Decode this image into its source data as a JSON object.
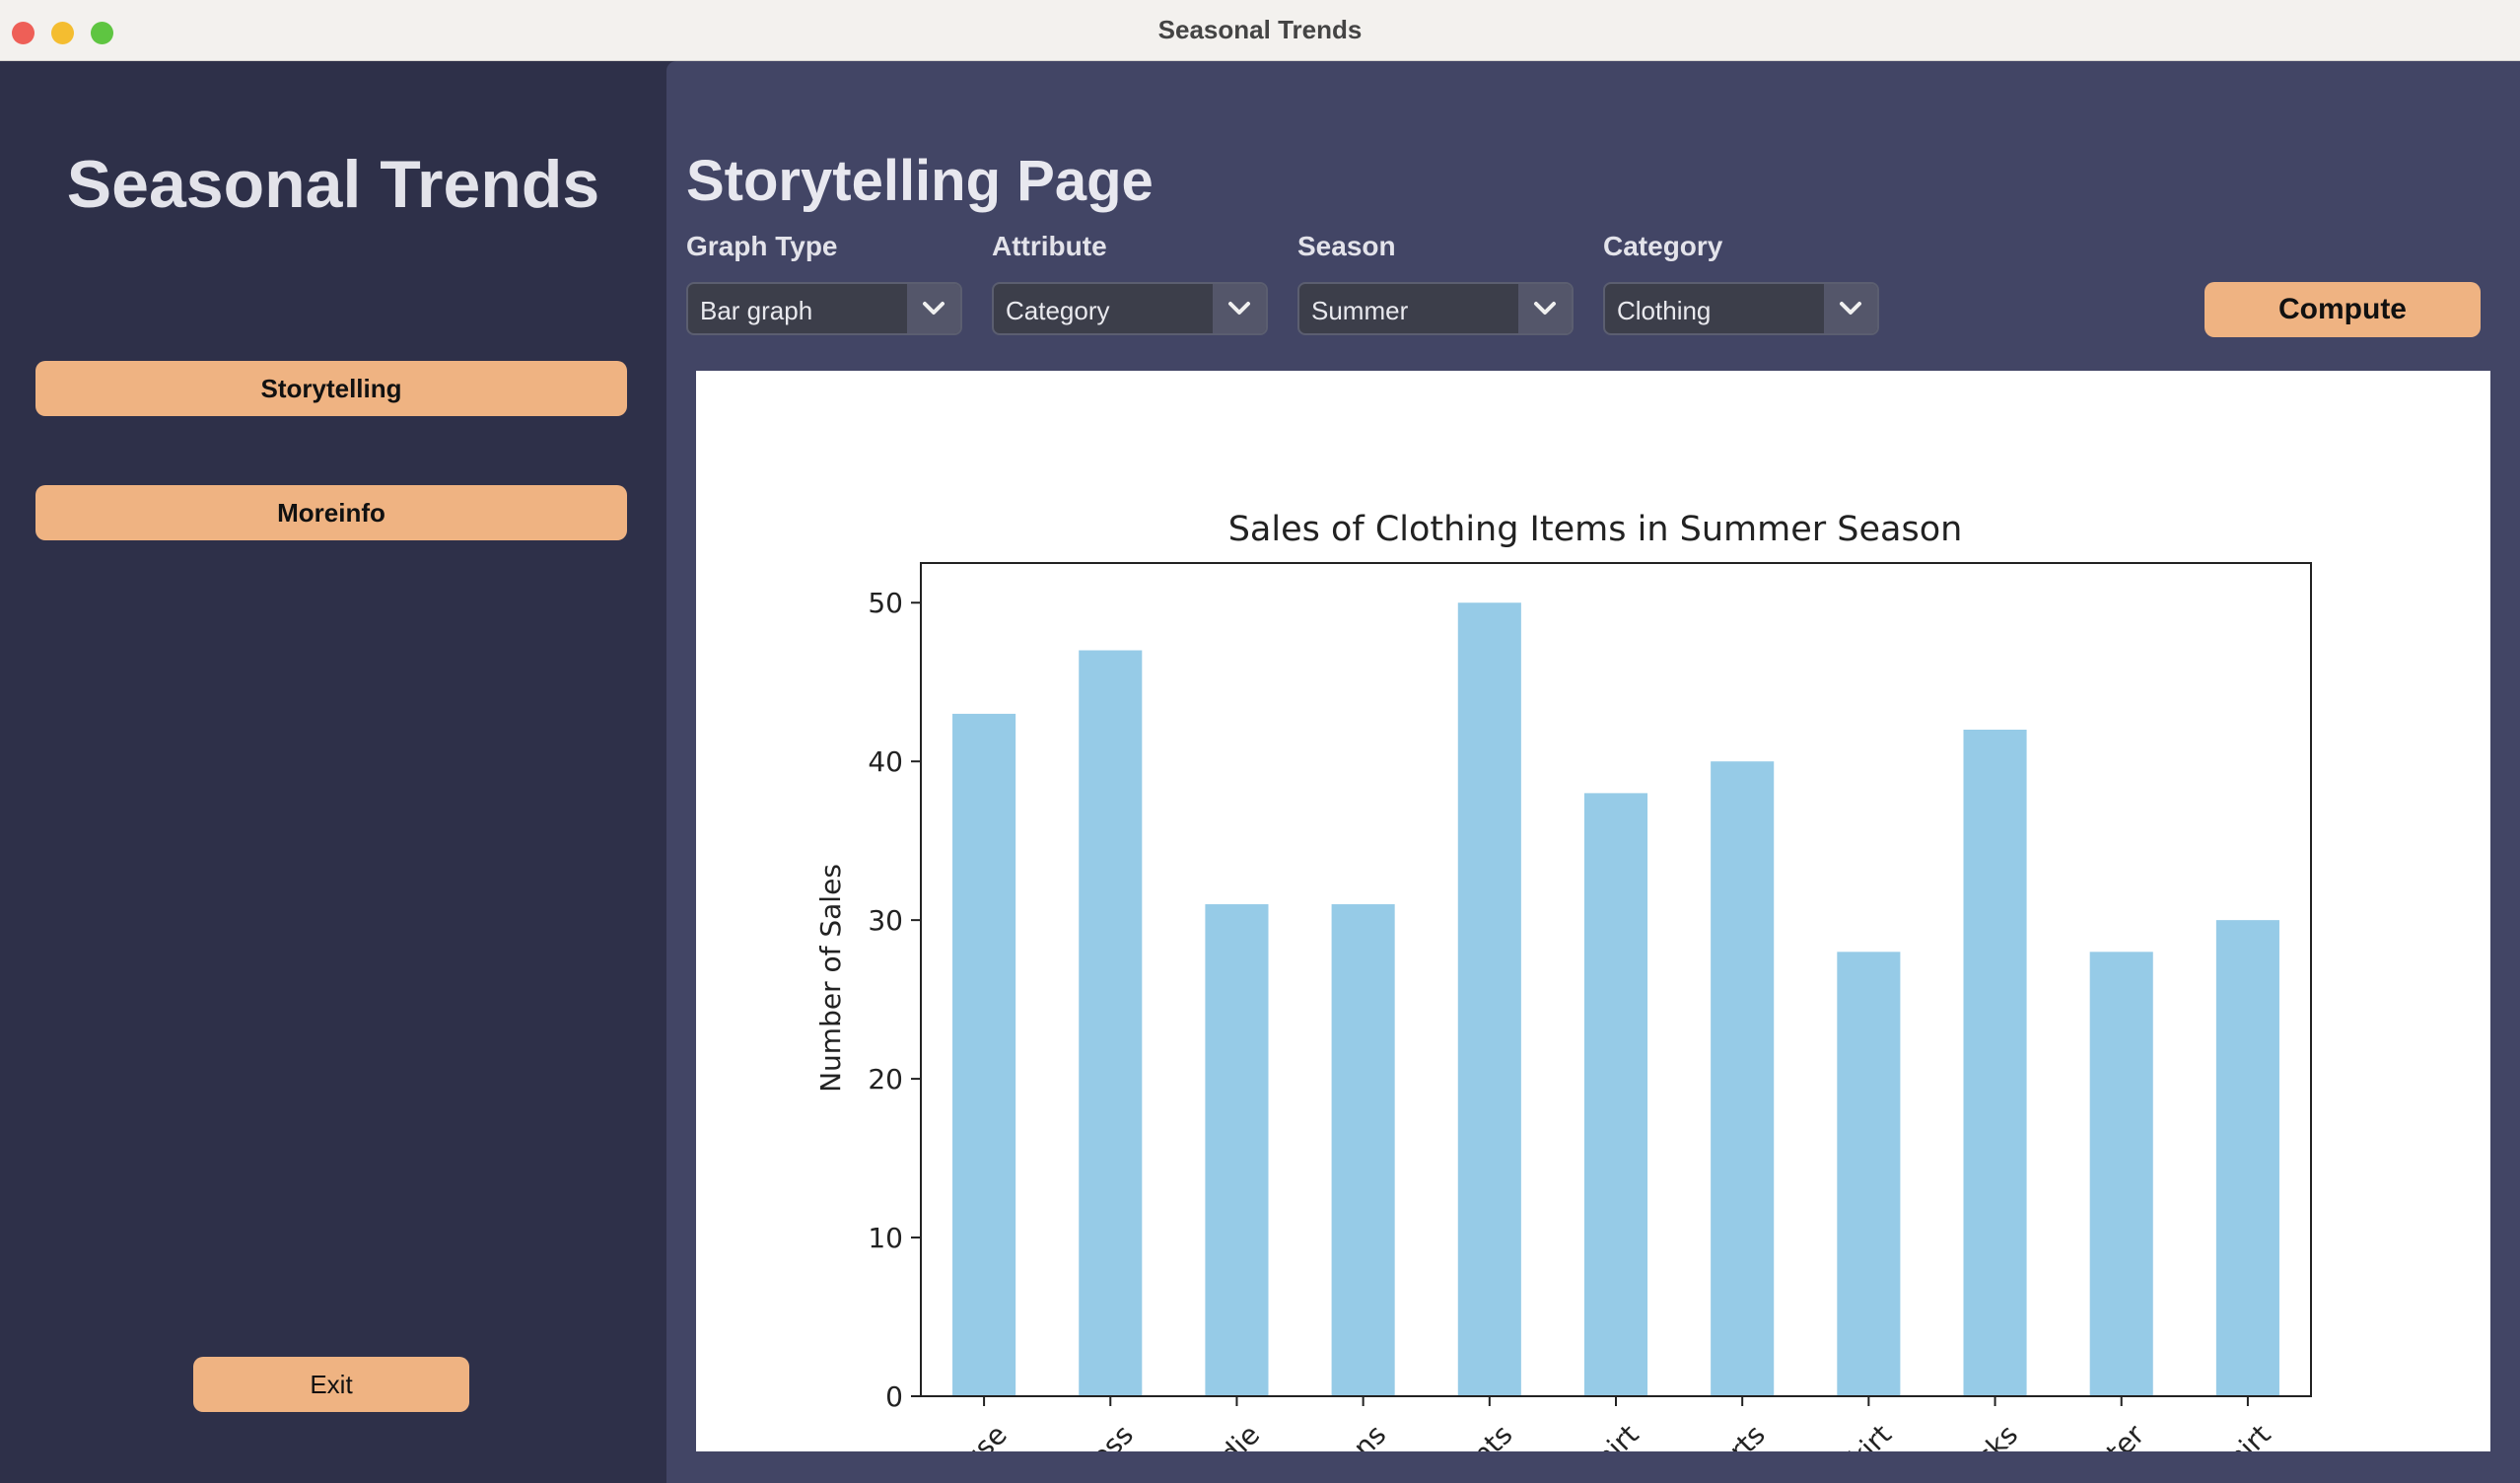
{
  "window": {
    "title": "Seasonal Trends"
  },
  "sidebar": {
    "app_title": "Seasonal Trends",
    "nav": [
      {
        "label": "Storytelling"
      },
      {
        "label": "Moreinfo"
      }
    ],
    "exit_label": "Exit"
  },
  "main": {
    "page_title": "Storytelling Page",
    "controls": [
      {
        "label": "Graph Type",
        "value": "Bar graph"
      },
      {
        "label": "Attribute",
        "value": "Category"
      },
      {
        "label": "Season",
        "value": "Summer"
      },
      {
        "label": "Category",
        "value": "Clothing"
      }
    ],
    "compute_label": "Compute"
  },
  "colors": {
    "sidebar_bg": "#2e3049",
    "main_bg": "#424565",
    "button": "#efb382",
    "bar": "#96cbe7"
  },
  "chart_data": {
    "type": "bar",
    "title": "Sales of Clothing Items in Summer Season",
    "xlabel": "",
    "ylabel": "Number of Sales",
    "categories": [
      "Blouse",
      "Dress",
      "Hoodie",
      "Jeans",
      "Pants",
      "Shirt",
      "Shorts",
      "Skirt",
      "Socks",
      "Sweater",
      "T-shirt"
    ],
    "values": [
      43,
      47,
      31,
      31,
      50,
      38,
      40,
      28,
      42,
      28,
      30
    ],
    "ylim": [
      0,
      52.5
    ],
    "yticks": [
      0,
      10,
      20,
      30,
      40,
      50
    ],
    "grid": false,
    "legend": "none"
  }
}
